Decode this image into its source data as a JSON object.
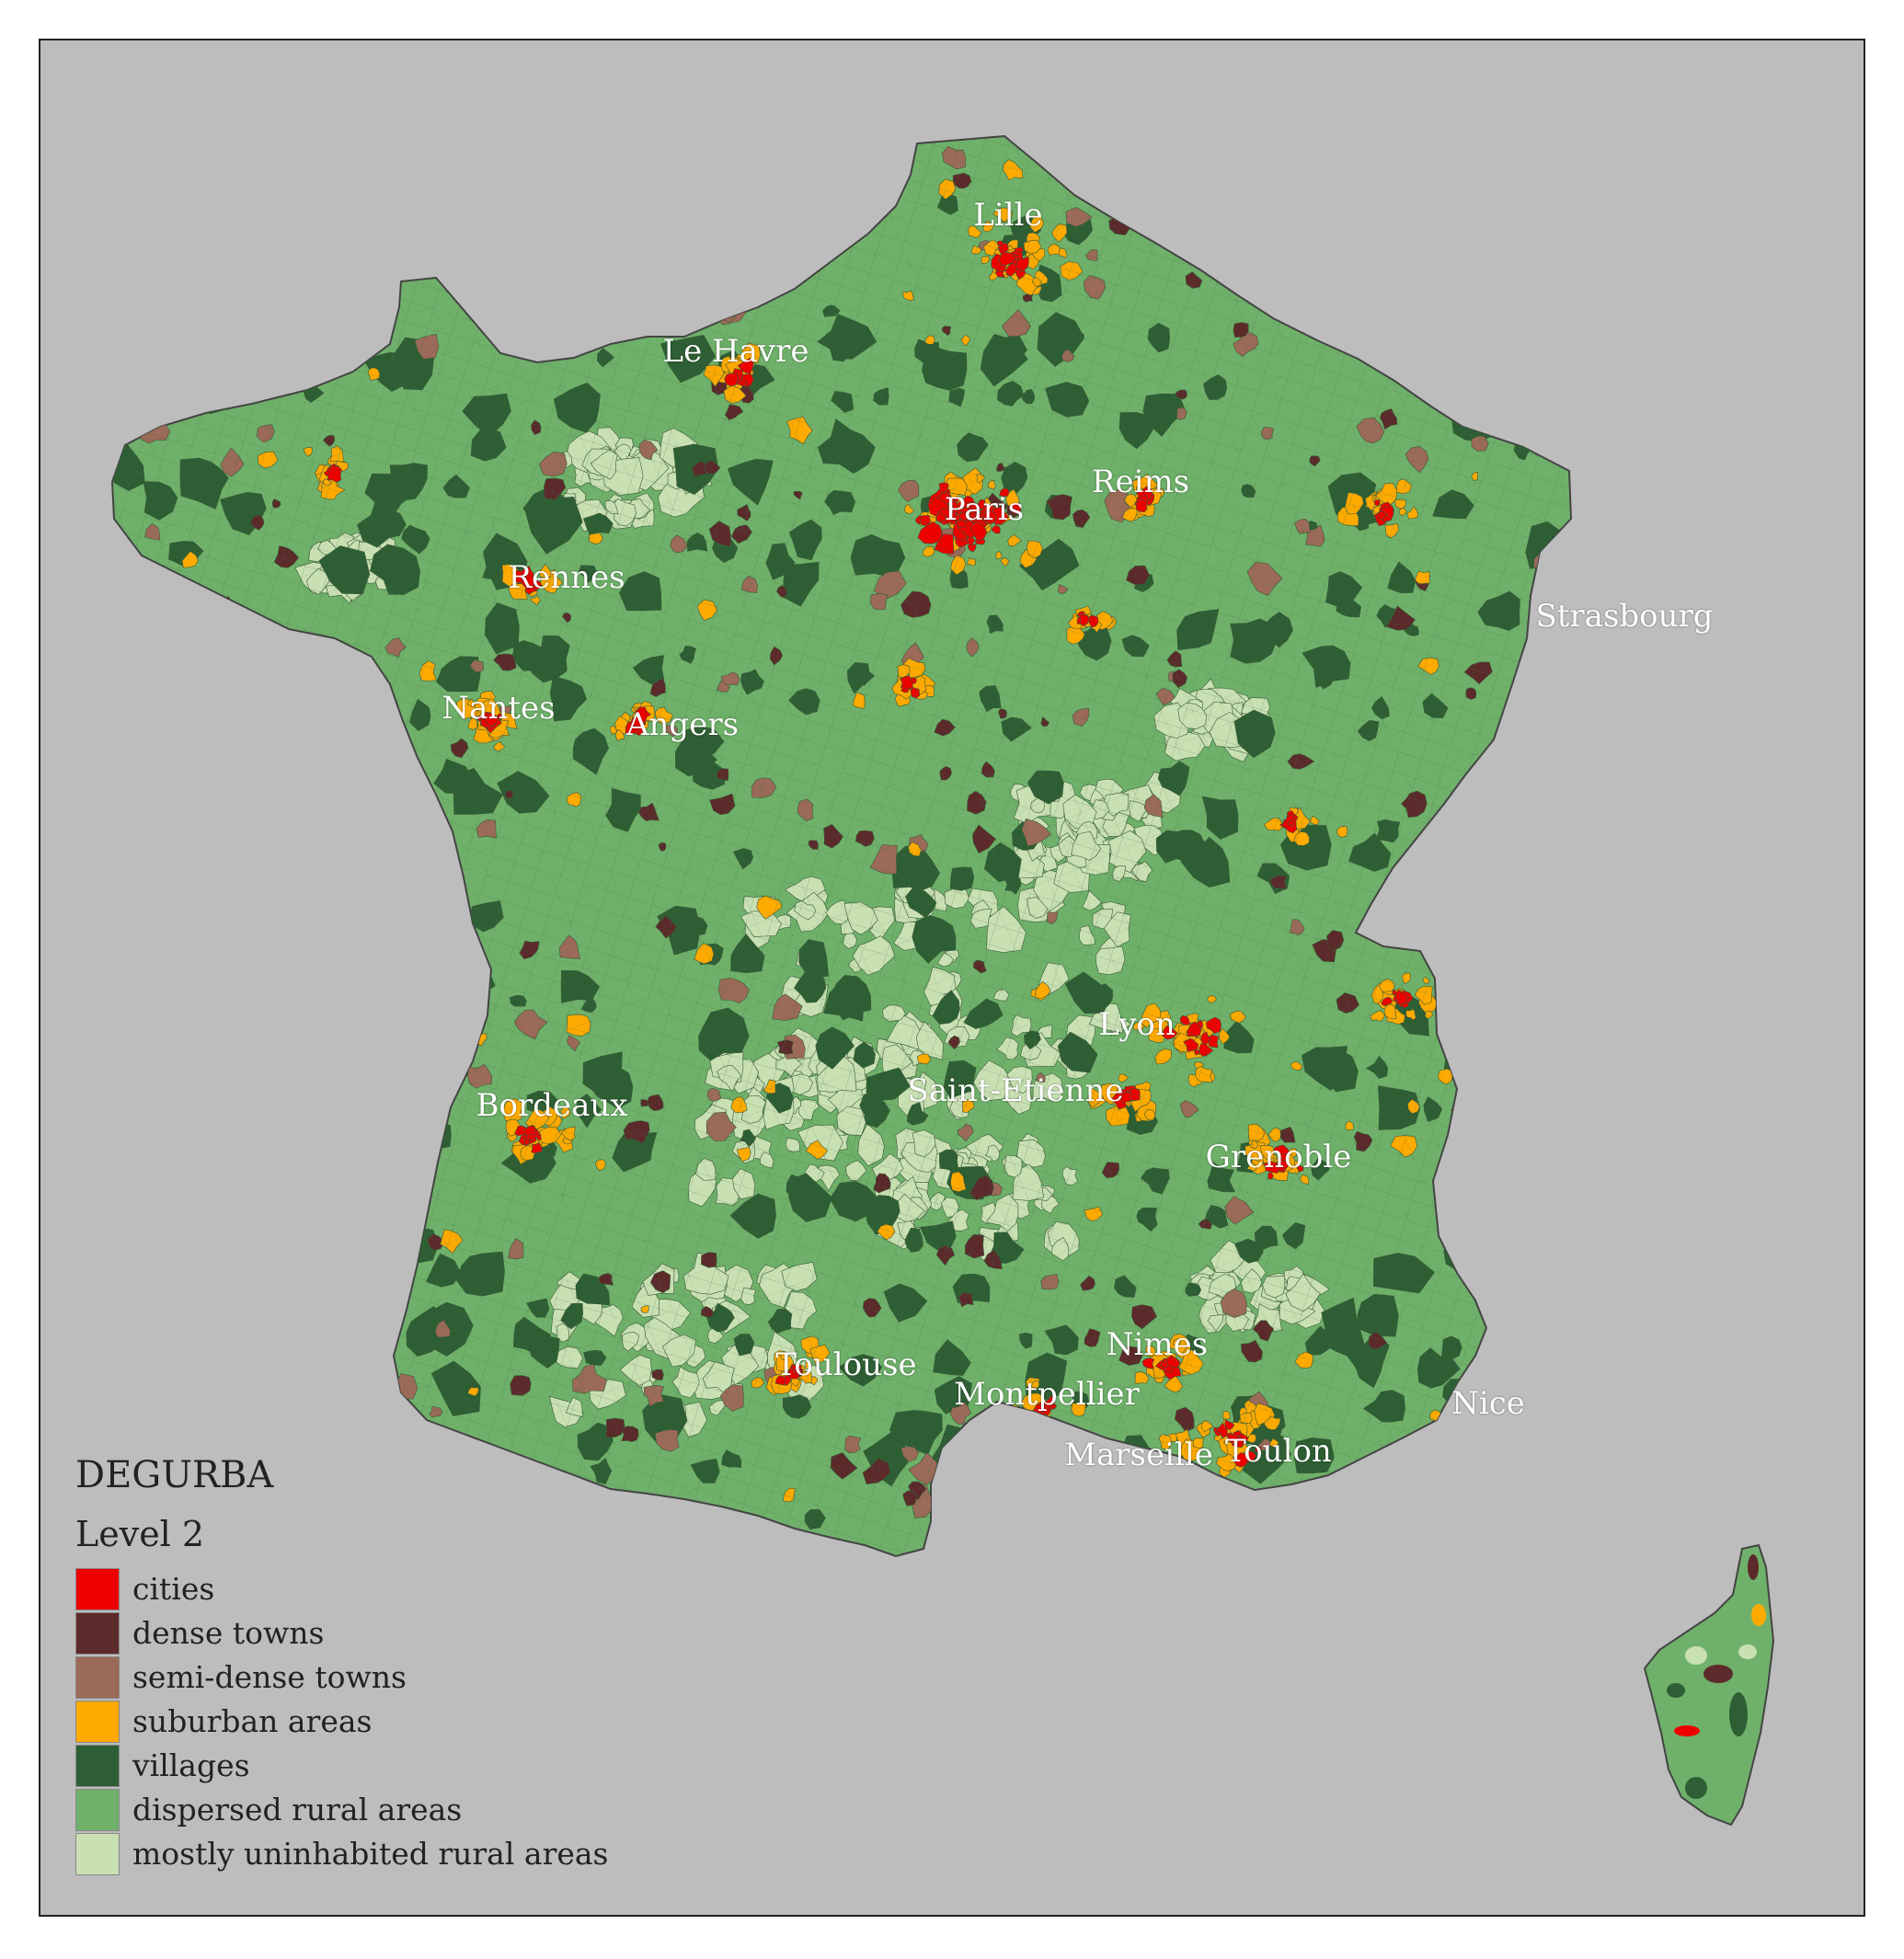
{
  "map": {
    "background_color": "#bdbdbd",
    "legend": {
      "title": "DEGURBA",
      "subtitle": "Level 2",
      "items": [
        {
          "label": "cities",
          "color": "#ee0000"
        },
        {
          "label": "dense towns",
          "color": "#5c2a2a"
        },
        {
          "label": "semi-dense towns",
          "color": "#9c6a58"
        },
        {
          "label": "suburban areas",
          "color": "#ffaa00"
        },
        {
          "label": "villages",
          "color": "#2e5e33"
        },
        {
          "label": "dispersed rural areas",
          "color": "#6fb16a"
        },
        {
          "label": "mostly uninhabited rural areas",
          "color": "#c9e0b3"
        }
      ]
    },
    "cities": [
      {
        "name": "Lille"
      },
      {
        "name": "Le Havre"
      },
      {
        "name": "Reims"
      },
      {
        "name": "Paris"
      },
      {
        "name": "Rennes"
      },
      {
        "name": "Strasbourg"
      },
      {
        "name": "Nantes"
      },
      {
        "name": "Angers"
      },
      {
        "name": "Lyon"
      },
      {
        "name": "Saint-Etienne"
      },
      {
        "name": "Bordeaux"
      },
      {
        "name": "Grenoble"
      },
      {
        "name": "Nimes"
      },
      {
        "name": "Toulouse"
      },
      {
        "name": "Montpellier"
      },
      {
        "name": "Nice"
      },
      {
        "name": "Marseille"
      },
      {
        "name": "Toulon"
      }
    ]
  }
}
